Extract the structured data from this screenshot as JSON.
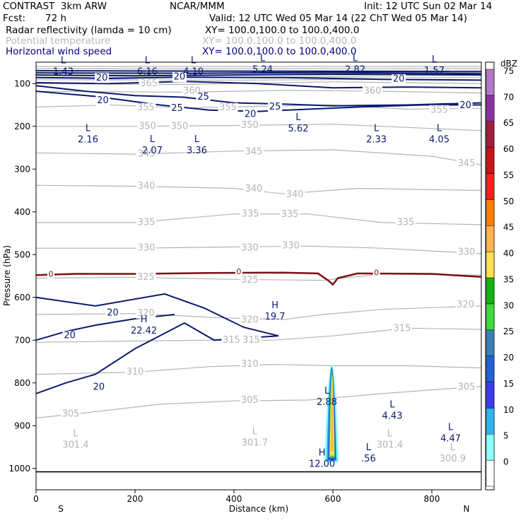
{
  "header": {
    "product": "CONTRAST  3km ARW",
    "org": "NCAR/MMM",
    "init": "Init: 12 UTC Sun 02 Mar 14",
    "fcst_label": "Fcst:",
    "fcst_value": "72 h",
    "valid": "Valid: 12 UTC Wed 05 Mar 14 (22 ChT Wed 05 Mar 14)",
    "field1": "Radar reflectivity (lamda = 10 cm)",
    "field1_xy": "XY= 100.0,100.0 to 100.0,400.0",
    "field2": "Potential temperature",
    "field2_xy": "XY= 100.0,100.0 to 100.0,400.0",
    "field3": "Horizontal wind speed",
    "field3_xy": "XY= 100.0,100.0 to 100.0,400.0"
  },
  "colors": {
    "theta": "#b4b4b4",
    "wind": "#0a1a6e",
    "zero_line": "#7a1010"
  },
  "chart_data": {
    "type": "cross-section",
    "xlabel": "Distance (km)",
    "ylabel": "Pressure (hPa)",
    "xlim": [
      0,
      900
    ],
    "ylim": [
      1050,
      50
    ],
    "x_ticks": [
      0,
      200,
      400,
      600,
      800
    ],
    "y_ticks": [
      100,
      200,
      300,
      400,
      500,
      600,
      700,
      800,
      900,
      1000
    ],
    "left_end_label": "S",
    "right_end_label": "N",
    "colorbar": {
      "unit": "dBZ",
      "levels": [
        0,
        5,
        10,
        15,
        20,
        25,
        30,
        35,
        40,
        45,
        50,
        55,
        60,
        65,
        70,
        75
      ],
      "colors": [
        "#ffffff",
        "#8cffff",
        "#2db4f0",
        "#3c3cf0",
        "#2060d8",
        "#3c80b4",
        "#3cdc3c",
        "#10b410",
        "#ffe050",
        "#ffb450",
        "#ff8000",
        "#ff1e1e",
        "#c81414",
        "#a01e3c",
        "#8c32a0",
        "#b478c8"
      ]
    },
    "surface_pressure": 1008,
    "theta_labels": [
      {
        "v": "365",
        "x": 228,
        "p": 100
      },
      {
        "v": "360",
        "x": 315,
        "p": 118
      },
      {
        "v": "360",
        "x": 680,
        "p": 118
      },
      {
        "v": "355",
        "x": 222,
        "p": 157
      },
      {
        "v": "355",
        "x": 388,
        "p": 157
      },
      {
        "v": "355",
        "x": 815,
        "p": 162
      },
      {
        "v": "350",
        "x": 225,
        "p": 200
      },
      {
        "v": "350",
        "x": 290,
        "p": 200
      },
      {
        "v": "350",
        "x": 432,
        "p": 198
      },
      {
        "v": "345",
        "x": 223,
        "p": 265
      },
      {
        "v": "345",
        "x": 440,
        "p": 260
      },
      {
        "v": "345",
        "x": 870,
        "p": 287
      },
      {
        "v": "340",
        "x": 223,
        "p": 340
      },
      {
        "v": "340",
        "x": 440,
        "p": 347
      },
      {
        "v": "340",
        "x": 523,
        "p": 360
      },
      {
        "v": "335",
        "x": 223,
        "p": 425
      },
      {
        "v": "335",
        "x": 433,
        "p": 405
      },
      {
        "v": "335",
        "x": 513,
        "p": 406
      },
      {
        "v": "335",
        "x": 747,
        "p": 425
      },
      {
        "v": "330",
        "x": 223,
        "p": 485
      },
      {
        "v": "330",
        "x": 432,
        "p": 485
      },
      {
        "v": "330",
        "x": 515,
        "p": 480
      },
      {
        "v": "330",
        "x": 870,
        "p": 495
      },
      {
        "v": "325",
        "x": 222,
        "p": 553
      },
      {
        "v": "325",
        "x": 432,
        "p": 560
      },
      {
        "v": "320",
        "x": 222,
        "p": 638
      },
      {
        "v": "320",
        "x": 432,
        "p": 653
      },
      {
        "v": "320",
        "x": 868,
        "p": 618
      },
      {
        "v": "315",
        "x": 395,
        "p": 700
      },
      {
        "v": "315",
        "x": 435,
        "p": 700
      },
      {
        "v": "315",
        "x": 740,
        "p": 673
      },
      {
        "v": "310",
        "x": 200,
        "p": 775
      },
      {
        "v": "310",
        "x": 432,
        "p": 757
      },
      {
        "v": "305",
        "x": 70,
        "p": 873
      },
      {
        "v": "305",
        "x": 432,
        "p": 841
      },
      {
        "v": "305",
        "x": 870,
        "p": 810
      }
    ],
    "wind_labels": [
      {
        "v": "20",
        "x": 133,
        "p": 87
      },
      {
        "v": "20",
        "x": 290,
        "p": 85
      },
      {
        "v": "20",
        "x": 733,
        "p": 90
      },
      {
        "v": "20",
        "x": 135,
        "p": 140
      },
      {
        "v": "25",
        "x": 338,
        "p": 132
      },
      {
        "v": "25",
        "x": 285,
        "p": 158
      },
      {
        "v": "25",
        "x": 483,
        "p": 155
      },
      {
        "v": "20",
        "x": 433,
        "p": 172
      },
      {
        "v": "20",
        "x": 868,
        "p": 152
      },
      {
        "v": "20",
        "x": 155,
        "p": 637
      },
      {
        "v": "20",
        "x": 68,
        "p": 690
      },
      {
        "v": "20",
        "x": 127,
        "p": 810
      }
    ],
    "zero_labels": [
      {
        "v": "0",
        "x": 30,
        "p": 547
      },
      {
        "v": "0",
        "x": 410,
        "p": 541
      },
      {
        "v": "0",
        "x": 688,
        "p": 543
      }
    ],
    "extrema": [
      {
        "t": "L",
        "v": "1.43",
        "x": 55,
        "p": 67,
        "c": "wind"
      },
      {
        "t": "L",
        "v": "6.16",
        "x": 225,
        "p": 67,
        "c": "wind"
      },
      {
        "t": "L",
        "v": "4.10",
        "x": 318,
        "p": 67,
        "c": "wind"
      },
      {
        "t": "L",
        "v": "5.24",
        "x": 458,
        "p": 62,
        "c": "wind"
      },
      {
        "t": "L",
        "v": "2.82",
        "x": 645,
        "p": 62,
        "c": "wind"
      },
      {
        "t": "L",
        "v": "1.57",
        "x": 805,
        "p": 65,
        "c": "wind"
      },
      {
        "t": "L",
        "v": "2.16",
        "x": 105,
        "p": 226,
        "c": "wind"
      },
      {
        "t": "L",
        "v": "2.07",
        "x": 235,
        "p": 252,
        "c": "wind"
      },
      {
        "t": "L",
        "v": "3.36",
        "x": 325,
        "p": 252,
        "c": "wind"
      },
      {
        "t": "L",
        "v": "5.62",
        "x": 530,
        "p": 200,
        "c": "wind"
      },
      {
        "t": "L",
        "v": "2.33",
        "x": 688,
        "p": 226,
        "c": "wind"
      },
      {
        "t": "L",
        "v": "4.05",
        "x": 815,
        "p": 226,
        "c": "wind"
      },
      {
        "t": "H",
        "v": "19.7",
        "x": 483,
        "p": 640,
        "c": "wind"
      },
      {
        "t": "H",
        "v": "22.42",
        "x": 218,
        "p": 673,
        "c": "wind"
      },
      {
        "t": "L",
        "v": "2.88",
        "x": 588,
        "p": 840,
        "c": "wind"
      },
      {
        "t": "L",
        "v": "4.43",
        "x": 720,
        "p": 872,
        "c": "wind"
      },
      {
        "t": "L",
        "v": "4.47",
        "x": 838,
        "p": 925,
        "c": "wind"
      },
      {
        "t": "L",
        "v": ".56",
        "x": 672,
        "p": 972,
        "c": "wind"
      },
      {
        "t": "H",
        "v": "12.00",
        "x": 578,
        "p": 985,
        "c": "wind"
      },
      {
        "t": "L",
        "v": "301.4",
        "x": 80,
        "p": 940,
        "c": "theta"
      },
      {
        "t": "L",
        "v": "301.7",
        "x": 442,
        "p": 935,
        "c": "theta"
      },
      {
        "t": "L",
        "v": "301.4",
        "x": 715,
        "p": 940,
        "c": "theta"
      },
      {
        "t": "L",
        "v": "300.9",
        "x": 842,
        "p": 972,
        "c": "theta"
      }
    ]
  }
}
